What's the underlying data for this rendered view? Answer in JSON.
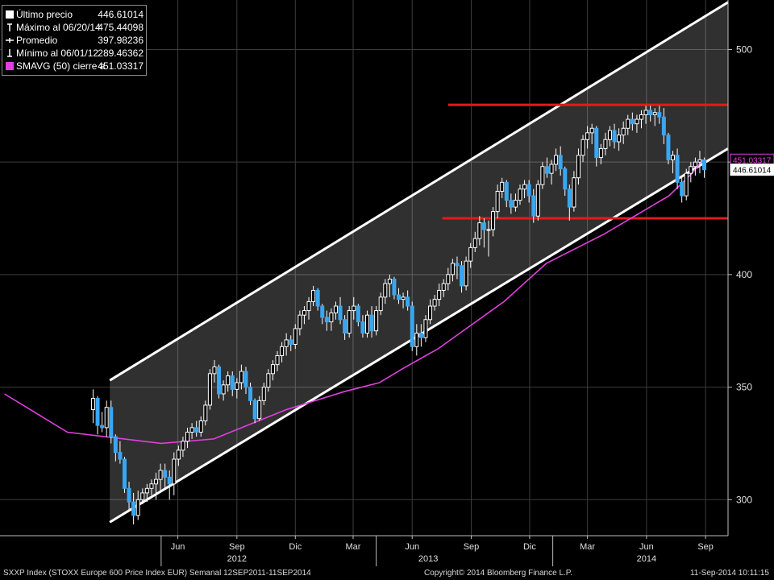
{
  "legend": [
    {
      "symbol": "square-icon",
      "label": "Último precio",
      "value": "446.61014"
    },
    {
      "symbol": "max-marker-icon",
      "label": "Máximo al 06/20/14",
      "value": "475.44098"
    },
    {
      "symbol": "avg-marker-icon",
      "label": "Promedio",
      "value": "397.98236"
    },
    {
      "symbol": "min-marker-icon",
      "label": "Mínimo al 06/01/12",
      "value": "289.46362"
    },
    {
      "symbol": "magenta-swatch-icon",
      "label": "SMAVG (50) cierre a",
      "value": "451.03317"
    }
  ],
  "footer": {
    "left": "SXXP Index (STOXX Europe 600 Price Index EUR)  Semanal 12SEP2011-11SEP2014",
    "center": "Copyright© 2014 Bloomberg Finance L.P.",
    "right": "11-Sep-2014 10:11:15"
  },
  "colors": {
    "background": "#000000",
    "up_candle": "#ffffff",
    "down_candle": "#3aa6f0",
    "sma": "#e040e0",
    "channel": "#ffffff",
    "level_lines": "#e21b1b",
    "grid": "#3c3c3c",
    "price_tag": "#ffffff"
  },
  "chart_data": {
    "type": "candlestick",
    "frequency": "weekly",
    "y_range": [
      284,
      522
    ],
    "y_ticks": [
      300,
      350,
      400,
      450,
      500
    ],
    "y_tick_labels": [
      "300",
      "350",
      "400",
      "",
      "500"
    ],
    "x_range": [
      "2011-09-12",
      "2014-10-20"
    ],
    "x_tick_labels": [
      {
        "date": "2012-06-15",
        "label": "Jun"
      },
      {
        "date": "2012-09-15",
        "label": "Sep"
      },
      {
        "date": "2012-12-15",
        "label": "Dic"
      },
      {
        "date": "2013-03-15",
        "label": "Mar"
      },
      {
        "date": "2013-06-15",
        "label": "Jun"
      },
      {
        "date": "2013-09-15",
        "label": "Sep"
      },
      {
        "date": "2013-12-15",
        "label": "Dic"
      },
      {
        "date": "2014-03-15",
        "label": "Mar"
      },
      {
        "date": "2014-06-15",
        "label": "Jun"
      },
      {
        "date": "2014-09-15",
        "label": "Sep"
      }
    ],
    "x_year_labels": [
      {
        "date": "2012-09-15",
        "label": "2012"
      },
      {
        "date": "2013-07-10",
        "label": "2013"
      },
      {
        "date": "2014-06-15",
        "label": "2014"
      }
    ],
    "year_separators": [
      "2012-05-20",
      "2013-04-20",
      "2014-01-20"
    ],
    "candles_start": "2012-02-04",
    "candles": [
      [
        340,
        349,
        334,
        345
      ],
      [
        345,
        346,
        329,
        333
      ],
      [
        333,
        339,
        330,
        332
      ],
      [
        332,
        344,
        328,
        341
      ],
      [
        341,
        344,
        325,
        328
      ],
      [
        328,
        329,
        317,
        321
      ],
      [
        321,
        326,
        316,
        318
      ],
      [
        318,
        319,
        303,
        305
      ],
      [
        305,
        308,
        295,
        299
      ],
      [
        299,
        303,
        289,
        293
      ],
      [
        293,
        304,
        291,
        300
      ],
      [
        300,
        305,
        298,
        303
      ],
      [
        303,
        307,
        299,
        305
      ],
      [
        305,
        309,
        302,
        307
      ],
      [
        307,
        312,
        300,
        309
      ],
      [
        309,
        316,
        303,
        313
      ],
      [
        313,
        316,
        305,
        310
      ],
      [
        310,
        313,
        300,
        307
      ],
      [
        307,
        321,
        302,
        318
      ],
      [
        318,
        324,
        315,
        322
      ],
      [
        322,
        328,
        319,
        326
      ],
      [
        326,
        332,
        323,
        330
      ],
      [
        330,
        334,
        327,
        332
      ],
      [
        332,
        335,
        328,
        330
      ],
      [
        330,
        337,
        328,
        335
      ],
      [
        335,
        344,
        333,
        342
      ],
      [
        342,
        358,
        340,
        356
      ],
      [
        356,
        362,
        352,
        359
      ],
      [
        359,
        360,
        345,
        347
      ],
      [
        347,
        353,
        344,
        351
      ],
      [
        351,
        357,
        348,
        355
      ],
      [
        355,
        357,
        346,
        349
      ],
      [
        349,
        354,
        345,
        352
      ],
      [
        352,
        360,
        349,
        357
      ],
      [
        357,
        359,
        347,
        350
      ],
      [
        350,
        352,
        342,
        344
      ],
      [
        344,
        345,
        334,
        336
      ],
      [
        336,
        346,
        335,
        344
      ],
      [
        344,
        352,
        342,
        350
      ],
      [
        350,
        358,
        348,
        356
      ],
      [
        356,
        362,
        353,
        360
      ],
      [
        360,
        366,
        357,
        364
      ],
      [
        364,
        370,
        361,
        368
      ],
      [
        368,
        374,
        364,
        371
      ],
      [
        371,
        373,
        366,
        369
      ],
      [
        369,
        378,
        367,
        376
      ],
      [
        376,
        384,
        373,
        382
      ],
      [
        382,
        386,
        378,
        384
      ],
      [
        384,
        390,
        380,
        388
      ],
      [
        388,
        395,
        386,
        393
      ],
      [
        393,
        394,
        384,
        386
      ],
      [
        386,
        387,
        378,
        381
      ],
      [
        381,
        384,
        375,
        379
      ],
      [
        379,
        385,
        375,
        383
      ],
      [
        383,
        388,
        380,
        386
      ],
      [
        386,
        390,
        378,
        380
      ],
      [
        380,
        382,
        371,
        374
      ],
      [
        374,
        386,
        372,
        384
      ],
      [
        384,
        390,
        380,
        386
      ],
      [
        386,
        387,
        377,
        379
      ],
      [
        379,
        382,
        372,
        374
      ],
      [
        374,
        384,
        372,
        382
      ],
      [
        382,
        386,
        372,
        375
      ],
      [
        375,
        386,
        373,
        384
      ],
      [
        384,
        392,
        382,
        390
      ],
      [
        390,
        398,
        387,
        396
      ],
      [
        396,
        400,
        390,
        398
      ],
      [
        398,
        399,
        389,
        391
      ],
      [
        391,
        394,
        387,
        389
      ],
      [
        389,
        392,
        385,
        390
      ],
      [
        390,
        393,
        384,
        386
      ],
      [
        386,
        388,
        366,
        368
      ],
      [
        368,
        378,
        364,
        374
      ],
      [
        374,
        378,
        368,
        372
      ],
      [
        372,
        382,
        370,
        380
      ],
      [
        380,
        389,
        378,
        386
      ],
      [
        386,
        391,
        384,
        389
      ],
      [
        389,
        396,
        386,
        393
      ],
      [
        393,
        398,
        390,
        396
      ],
      [
        396,
        403,
        393,
        400
      ],
      [
        400,
        407,
        397,
        405
      ],
      [
        405,
        408,
        398,
        404
      ],
      [
        404,
        406,
        392,
        395
      ],
      [
        395,
        408,
        393,
        406
      ],
      [
        406,
        414,
        403,
        412
      ],
      [
        412,
        419,
        410,
        416
      ],
      [
        416,
        426,
        413,
        423
      ],
      [
        423,
        425,
        412,
        420
      ],
      [
        420,
        424,
        408,
        420
      ],
      [
        420,
        430,
        417,
        428
      ],
      [
        428,
        440,
        425,
        437
      ],
      [
        437,
        443,
        434,
        441
      ],
      [
        441,
        442,
        430,
        433
      ],
      [
        433,
        436,
        427,
        430
      ],
      [
        430,
        436,
        428,
        433
      ],
      [
        433,
        440,
        431,
        438
      ],
      [
        438,
        442,
        434,
        440
      ],
      [
        440,
        442,
        432,
        435
      ],
      [
        435,
        438,
        423,
        426
      ],
      [
        426,
        442,
        424,
        440
      ],
      [
        440,
        450,
        438,
        448
      ],
      [
        448,
        452,
        443,
        445
      ],
      [
        445,
        451,
        440,
        449
      ],
      [
        449,
        456,
        446,
        453
      ],
      [
        453,
        457,
        444,
        447
      ],
      [
        447,
        448,
        435,
        438
      ],
      [
        438,
        440,
        424,
        430
      ],
      [
        430,
        446,
        428,
        443
      ],
      [
        443,
        456,
        440,
        453
      ],
      [
        453,
        462,
        450,
        460
      ],
      [
        460,
        466,
        456,
        463
      ],
      [
        463,
        467,
        458,
        465
      ],
      [
        465,
        466,
        448,
        452
      ],
      [
        452,
        458,
        449,
        456
      ],
      [
        456,
        463,
        453,
        460
      ],
      [
        460,
        466,
        457,
        464
      ],
      [
        464,
        467,
        456,
        459
      ],
      [
        459,
        465,
        455,
        462
      ],
      [
        462,
        468,
        458,
        465
      ],
      [
        465,
        471,
        462,
        469
      ],
      [
        469,
        472,
        464,
        467
      ],
      [
        467,
        471,
        463,
        469
      ],
      [
        469,
        473,
        465,
        471
      ],
      [
        471,
        475,
        467,
        473
      ],
      [
        473,
        475,
        468,
        471
      ],
      [
        471,
        474,
        466,
        472
      ],
      [
        472,
        475,
        467,
        470
      ],
      [
        470,
        474,
        458,
        462
      ],
      [
        462,
        463,
        449,
        451
      ],
      [
        451,
        455,
        445,
        453
      ],
      [
        453,
        456,
        438,
        441
      ],
      [
        441,
        444,
        432,
        435
      ],
      [
        435,
        447,
        433,
        445
      ],
      [
        445,
        450,
        441,
        448
      ],
      [
        448,
        452,
        444,
        450
      ],
      [
        450,
        455,
        445,
        451
      ],
      [
        451,
        452,
        443,
        446.6
      ]
    ],
    "sma_label": "SMAVG (50)",
    "sma50": [
      {
        "date": "2011-09-19",
        "value": 347
      },
      {
        "date": "2011-12-26",
        "value": 330
      },
      {
        "date": "2012-05-20",
        "value": 325
      },
      {
        "date": "2012-08-10",
        "value": 327
      },
      {
        "date": "2012-12-01",
        "value": 340
      },
      {
        "date": "2013-03-01",
        "value": 348
      },
      {
        "date": "2013-04-25",
        "value": 352
      },
      {
        "date": "2013-05-30",
        "value": 358
      },
      {
        "date": "2013-07-25",
        "value": 367
      },
      {
        "date": "2013-11-05",
        "value": 388
      },
      {
        "date": "2014-01-10",
        "value": 405
      },
      {
        "date": "2014-04-10",
        "value": 418
      },
      {
        "date": "2014-07-20",
        "value": 435
      },
      {
        "date": "2014-08-25",
        "value": 445
      },
      {
        "date": "2014-09-11",
        "value": 451.03317
      }
    ],
    "channel": {
      "upper": [
        {
          "date": "2012-03-01",
          "value": 353
        },
        {
          "date": "2014-10-20",
          "value": 521
        }
      ],
      "lower": [
        {
          "date": "2012-03-01",
          "value": 290
        },
        {
          "date": "2014-10-20",
          "value": 456
        }
      ]
    },
    "horizontal_levels": [
      {
        "value": 475.44098,
        "from": "2013-08-10",
        "to": "2014-10-20"
      },
      {
        "value": 425,
        "from": "2013-08-01",
        "to": "2014-10-20"
      }
    ],
    "price_tags": [
      {
        "value": 451.03317,
        "label": "451.03317",
        "style": "sma"
      },
      {
        "value": 446.61014,
        "label": "446.61014",
        "style": "last"
      }
    ]
  }
}
